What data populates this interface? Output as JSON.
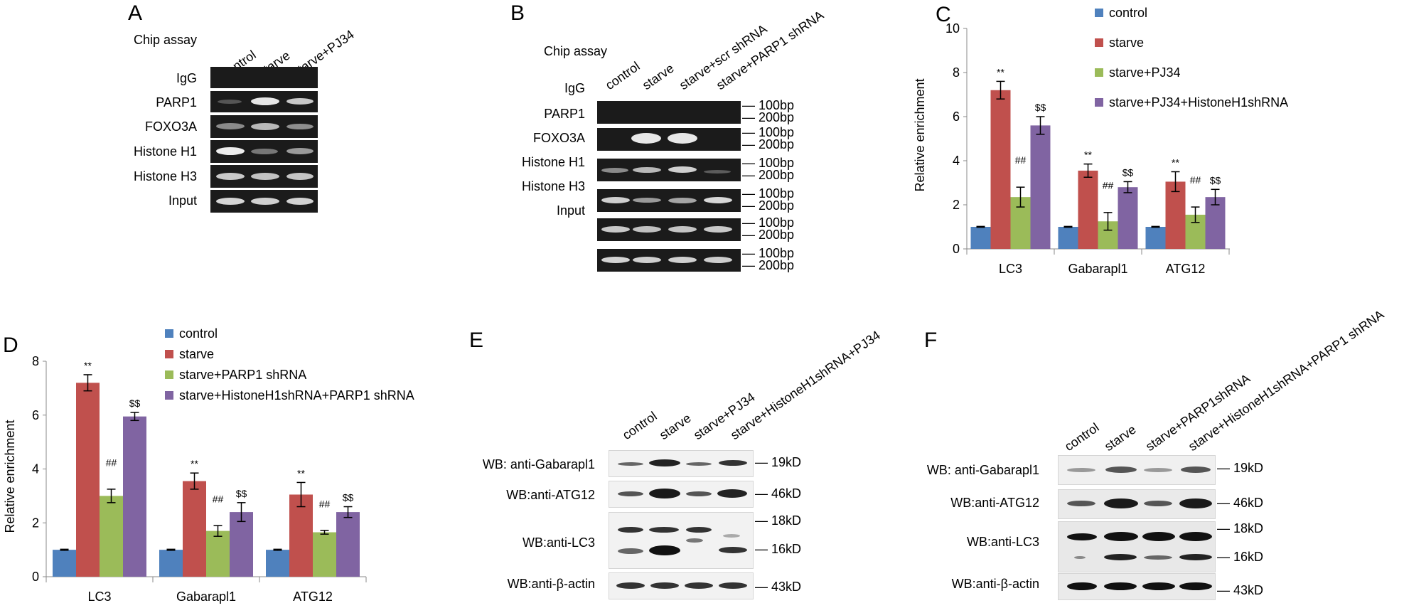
{
  "panels": {
    "A": {
      "letter": "A",
      "title": "Chip assay",
      "lanes": [
        "control",
        "starve",
        "starve+PJ34"
      ],
      "rows": [
        "IgG",
        "PARP1",
        "FOXO3A",
        "Histone H1",
        "Histone H3",
        "Input"
      ]
    },
    "B": {
      "letter": "B",
      "title": "Chip assay",
      "lanes": [
        "control",
        "starve",
        "starve+scr shRNA",
        "starve+PARP1 shRNA"
      ],
      "rows": [
        "IgG",
        "PARP1",
        "FOXO3A",
        "Histone H1",
        "Histone H3",
        "Input"
      ],
      "size_markers": [
        "100bp",
        "200bp"
      ]
    },
    "E": {
      "letter": "E",
      "lanes": [
        "control",
        "starve",
        "starve+PJ34",
        "starve+HistoneH1shRNA+PJ34"
      ],
      "rows": [
        "WB: anti-Gabarapl1",
        "WB:anti-ATG12",
        "WB:anti-LC3",
        "WB:anti-β-actin"
      ],
      "sizes": [
        "19kD",
        "46kD",
        "18kD",
        "16kD",
        "43kD"
      ]
    },
    "F": {
      "letter": "F",
      "lanes": [
        "control",
        "starve",
        "starve+PARP1shRNA",
        "starve+HistoneH1shRNA+PARP1 shRNA"
      ],
      "rows": [
        "WB: anti-Gabarapl1",
        "WB:anti-ATG12",
        "WB:anti-LC3",
        "WB:anti-β-actin"
      ],
      "sizes": [
        "19kD",
        "46kD",
        "18kD",
        "16kD",
        "43kD"
      ]
    }
  },
  "colors": {
    "control": "#4f81bd",
    "starve": "#c0504d",
    "treat": "#9bbb59",
    "combo": "#8064a2"
  },
  "chart_data": [
    {
      "panel": "C",
      "type": "bar",
      "categories": [
        "LC3",
        "Gabarapl1",
        "ATG12"
      ],
      "ylabel": "Relative enrichment",
      "ylim": [
        0,
        10
      ],
      "yticks": [
        "0",
        "2",
        "4",
        "6",
        "8",
        "10"
      ],
      "legend_position": "top-right",
      "series": [
        {
          "name": "control",
          "values": [
            1.0,
            1.0,
            1.0
          ],
          "errors": [
            0.02,
            0.02,
            0.02
          ],
          "annotations": [
            "",
            "",
            ""
          ]
        },
        {
          "name": "starve",
          "values": [
            7.2,
            3.55,
            3.05
          ],
          "errors": [
            0.4,
            0.3,
            0.45
          ],
          "annotations": [
            "**",
            "**",
            "**"
          ]
        },
        {
          "name": "starve+PJ34",
          "values": [
            2.35,
            1.25,
            1.55
          ],
          "errors": [
            0.45,
            0.4,
            0.35
          ],
          "annotations": [
            "##",
            "##",
            "##"
          ]
        },
        {
          "name": "starve+PJ34+HistoneH1shRNA",
          "values": [
            5.6,
            2.8,
            2.35
          ],
          "errors": [
            0.4,
            0.25,
            0.35
          ],
          "annotations": [
            "$$",
            "$$",
            "$$"
          ]
        }
      ]
    },
    {
      "panel": "D",
      "type": "bar",
      "categories": [
        "LC3",
        "Gabarapl1",
        "ATG12"
      ],
      "ylabel": "Relative enrichment",
      "ylim": [
        0,
        8
      ],
      "yticks": [
        "0",
        "2",
        "4",
        "6",
        "8"
      ],
      "legend_position": "top-right",
      "series": [
        {
          "name": "control",
          "values": [
            1.0,
            1.0,
            1.0
          ],
          "errors": [
            0.02,
            0.02,
            0.02
          ],
          "annotations": [
            "",
            "",
            ""
          ]
        },
        {
          "name": "starve",
          "values": [
            7.2,
            3.55,
            3.05
          ],
          "errors": [
            0.3,
            0.3,
            0.45
          ],
          "annotations": [
            "**",
            "**",
            "**"
          ]
        },
        {
          "name": "starve+PARP1 shRNA",
          "values": [
            3.0,
            1.7,
            1.65
          ],
          "errors": [
            0.25,
            0.2,
            0.07
          ],
          "annotations": [
            "##",
            "##",
            "##"
          ]
        },
        {
          "name": "starve+HistoneH1shRNA+PARP1 shRNA",
          "values": [
            5.95,
            2.4,
            2.4
          ],
          "errors": [
            0.15,
            0.35,
            0.2
          ],
          "annotations": [
            "$$",
            "$$",
            "$$"
          ]
        }
      ]
    }
  ]
}
